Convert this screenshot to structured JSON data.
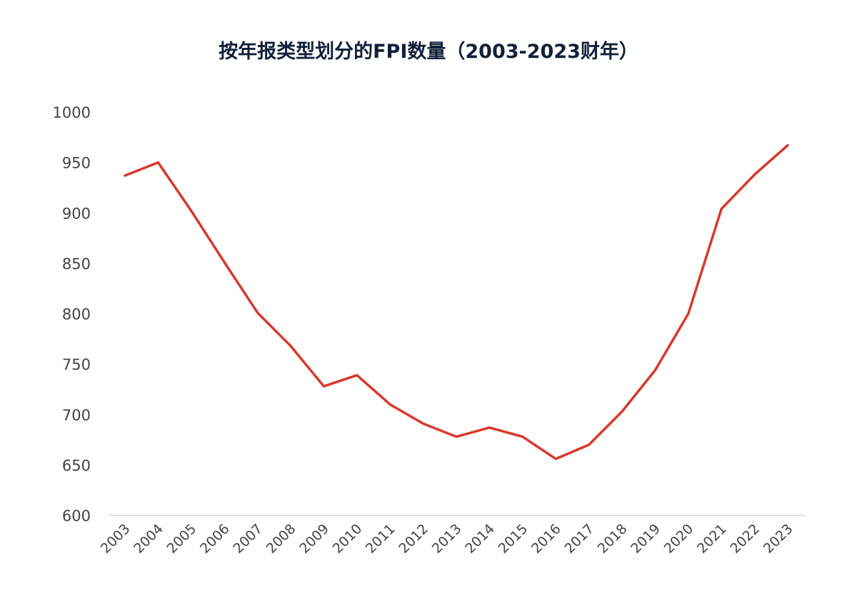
{
  "chart_data": {
    "type": "line",
    "title": "按年报类型划分的FPI数量（2003-2023财年）",
    "xlabel": "",
    "ylabel": "",
    "categories": [
      "2003",
      "2004",
      "2005",
      "2006",
      "2007",
      "2008",
      "2009",
      "2010",
      "2011",
      "2012",
      "2013",
      "2014",
      "2015",
      "2016",
      "2017",
      "2018",
      "2019",
      "2020",
      "2021",
      "2022",
      "2023"
    ],
    "series": [
      {
        "name": "FPI数量",
        "color": "#d9382b",
        "values": [
          937,
          950,
          902,
          851,
          801,
          768,
          728,
          739,
          710,
          691,
          678,
          687,
          678,
          656,
          670,
          703,
          744,
          800,
          904,
          938,
          967
        ]
      }
    ],
    "ylim": [
      600,
      1000
    ],
    "yticks": [
      600,
      650,
      700,
      750,
      800,
      850,
      900,
      950,
      1000
    ],
    "grid": false,
    "legend": "none"
  }
}
